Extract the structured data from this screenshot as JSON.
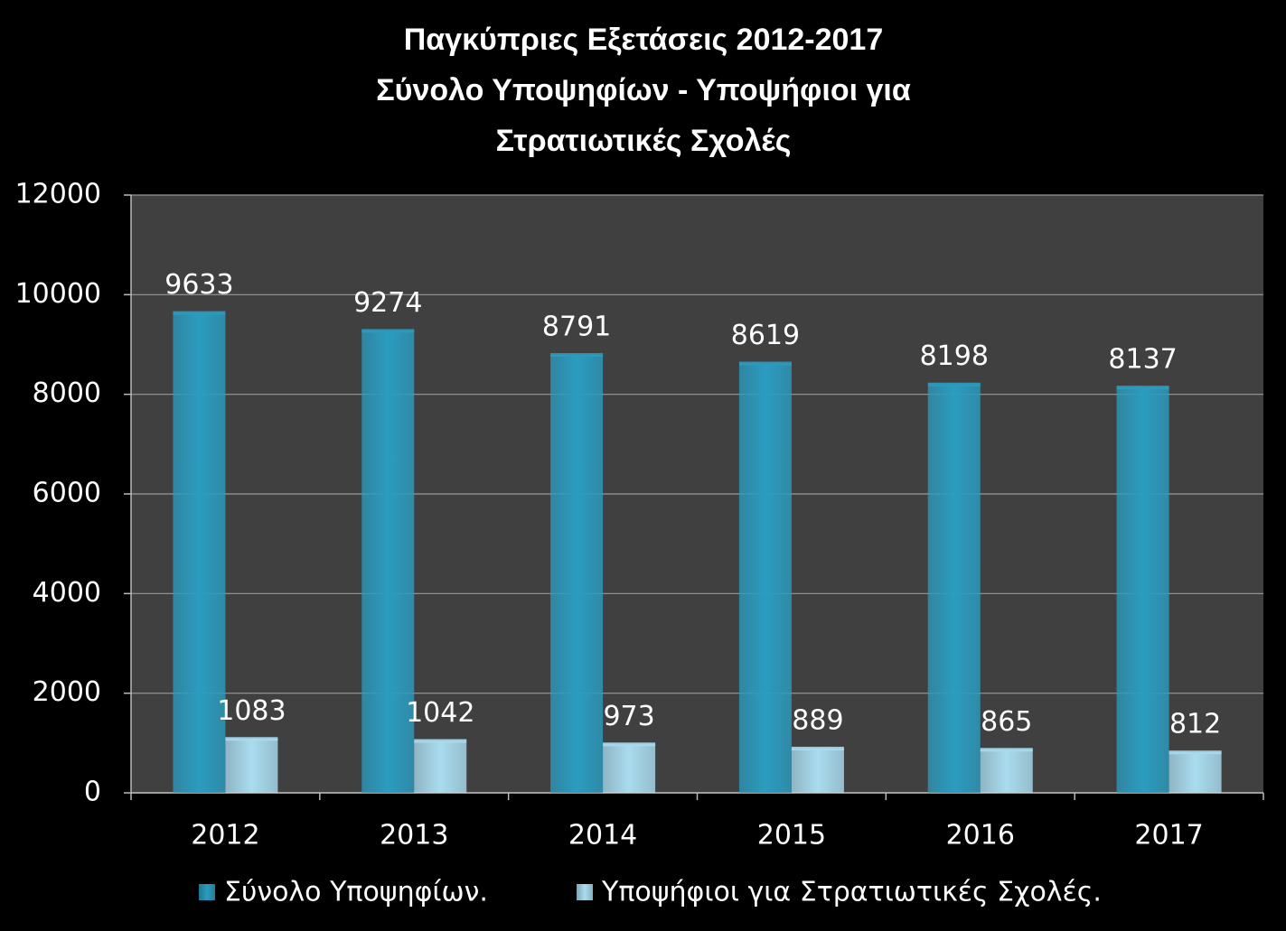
{
  "chart_data": {
    "type": "bar",
    "title": [
      "Παγκύπριες Εξετάσεις 2012-2017",
      "Σύνολο Υποψηφίων - Υποψήφιοι για",
      "Στρατιωτικές Σχολές"
    ],
    "categories": [
      "2012",
      "2013",
      "2014",
      "2015",
      "2016",
      "2017"
    ],
    "series": [
      {
        "name": "Σύνολο Υποψηφίων.",
        "color": "#2b9cc0",
        "values": [
          9633,
          9274,
          8791,
          8619,
          8198,
          8137
        ]
      },
      {
        "name": "Υποψήφιοι για Στρατιωτικές Σχολές.",
        "color": "#a9dcef",
        "values": [
          1083,
          1042,
          973,
          889,
          865,
          812
        ]
      }
    ],
    "ylim": [
      0,
      12000
    ],
    "yticks": [
      0,
      2000,
      4000,
      6000,
      8000,
      10000,
      12000
    ],
    "grid": true,
    "legend": "bottom"
  }
}
